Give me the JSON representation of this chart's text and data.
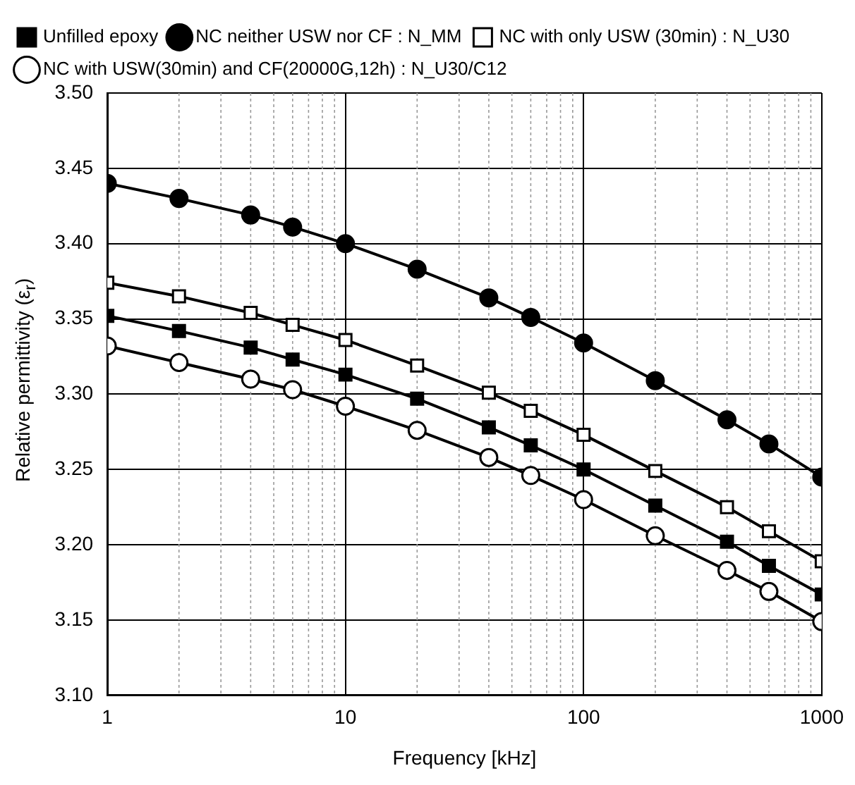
{
  "chart_data": {
    "type": "line",
    "xlabel": "Frequency [kHz]",
    "ylabel": "Relative permittivity (ε$_{r}$)",
    "x": [
      1,
      2,
      4,
      6,
      10,
      20,
      40,
      60,
      100,
      200,
      400,
      600,
      1000
    ],
    "series": [
      {
        "name": "Unfilled epoxy",
        "color": "#000000",
        "marker": "square",
        "values": [
          3.352,
          3.342,
          3.331,
          3.323,
          3.313,
          3.297,
          3.278,
          3.266,
          3.25,
          3.226,
          3.202,
          3.186,
          3.167
        ]
      },
      {
        "name": "NC neither USW nor CF : N_MM",
        "color": "#000000",
        "marker": "circle",
        "values": [
          3.44,
          3.43,
          3.419,
          3.411,
          3.4,
          3.383,
          3.364,
          3.351,
          3.334,
          3.309,
          3.283,
          3.267,
          3.245
        ]
      },
      {
        "name": "NC with only USW (30min) : N_U30",
        "color": "#000000",
        "marker": "square",
        "colors": [
          "#ffffff",
          "#ffffff",
          "#ffffff",
          "#ffffff",
          "#ffffff",
          "#ffffff",
          "#ffffff",
          "#ffffff",
          "#ffffff",
          "#ffffff",
          "#ffffff",
          "#ffffff",
          "#ffffff"
        ],
        "values": [
          3.374,
          3.365,
          3.354,
          3.346,
          3.336,
          3.319,
          3.301,
          3.289,
          3.273,
          3.249,
          3.225,
          3.209,
          3.189
        ]
      },
      {
        "name": "NC with USW(30min) and CF(20000G,12h) : N_U30/C12",
        "color": "#000000",
        "marker": "circle",
        "colors": [
          "#ffffff",
          "#ffffff",
          "#ffffff",
          "#ffffff",
          "#ffffff",
          "#ffffff",
          "#ffffff",
          "#ffffff",
          "#ffffff",
          "#ffffff",
          "#ffffff",
          "#ffffff",
          "#ffffff"
        ],
        "values": [
          3.332,
          3.321,
          3.31,
          3.303,
          3.292,
          3.276,
          3.258,
          3.246,
          3.23,
          3.206,
          3.183,
          3.169,
          3.149
        ]
      }
    ],
    "log": "x",
    "xlim": [
      1,
      1000
    ],
    "xticks": [
      1,
      10,
      100,
      1000
    ],
    "ylim": [
      3.1,
      3.5
    ],
    "yticks": [
      {
        "value": 3.1,
        "label": "3.10"
      },
      3.15,
      {
        "value": 3.2,
        "label": "3.20"
      },
      3.25,
      {
        "value": 3.3,
        "label": "3.30"
      },
      3.35,
      {
        "value": 3.4,
        "label": "3.40"
      },
      3.45,
      {
        "value": 3.5,
        "label": "3.50"
      }
    ],
    "grid": true,
    "legend": "top",
    "line_style": "solid"
  }
}
